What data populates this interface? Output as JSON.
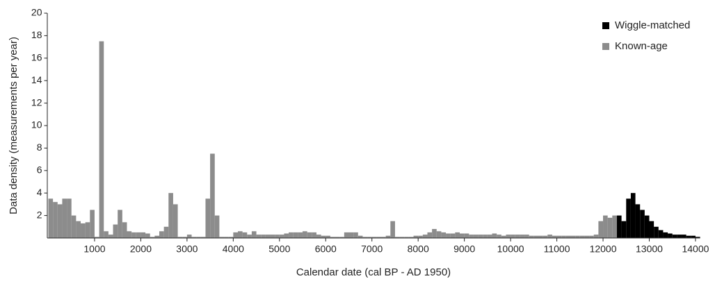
{
  "chart_data": {
    "type": "histogram",
    "xlabel": "Calendar date (cal BP - AD 1950)",
    "ylabel": "Data density (measurements per year)",
    "xlim": [
      0,
      14100
    ],
    "ylim": [
      0,
      20
    ],
    "xticks": [
      1000,
      2000,
      3000,
      4000,
      5000,
      6000,
      7000,
      8000,
      9000,
      10000,
      11000,
      12000,
      13000,
      14000
    ],
    "yticks": [
      2,
      4,
      6,
      8,
      10,
      12,
      14,
      16,
      18,
      20
    ],
    "grid": false,
    "legend": "upper right",
    "bins": [
      0,
      100,
      200,
      300,
      400,
      500,
      600,
      700,
      800,
      900,
      1000,
      1100,
      1200,
      1300,
      1400,
      1500,
      1600,
      1700,
      1800,
      1900,
      2000,
      2100,
      2200,
      2300,
      2400,
      2500,
      2600,
      2700,
      2800,
      2900,
      3000,
      3100,
      3200,
      3300,
      3400,
      3500,
      3600,
      3700,
      3800,
      3900,
      4000,
      4100,
      4200,
      4300,
      4400,
      4500,
      4600,
      4700,
      4800,
      4900,
      5000,
      5100,
      5200,
      5300,
      5400,
      5500,
      5600,
      5700,
      5800,
      5900,
      6000,
      6100,
      6200,
      6300,
      6400,
      6500,
      6600,
      6700,
      6800,
      6900,
      7000,
      7100,
      7200,
      7300,
      7400,
      7500,
      7600,
      7700,
      7800,
      7900,
      8000,
      8100,
      8200,
      8300,
      8400,
      8500,
      8600,
      8700,
      8800,
      8900,
      9000,
      9100,
      9200,
      9300,
      9400,
      9500,
      9600,
      9700,
      9800,
      9900,
      10000,
      10100,
      10200,
      10300,
      10400,
      10500,
      10600,
      10700,
      10800,
      10900,
      11000,
      11100,
      11200,
      11300,
      11400,
      11500,
      11600,
      11700,
      11800,
      11900,
      12000,
      12100,
      12200,
      12300,
      12400,
      12500,
      12600,
      12700,
      12800,
      12900,
      13000,
      13100,
      13200,
      13300,
      13400,
      13500,
      13600,
      13700,
      13800,
      13900,
      14000,
      14100
    ],
    "series": [
      {
        "name": "Wiggle-matched",
        "color": "#000000",
        "values": [
          0,
          0,
          0,
          0,
          0,
          0,
          0,
          0,
          0,
          0,
          0,
          0,
          0,
          0,
          0,
          0,
          0,
          0,
          0,
          0,
          0,
          0,
          0,
          0,
          0,
          0,
          0,
          0,
          0,
          0,
          0,
          0,
          0,
          0,
          0,
          0,
          0,
          0,
          0,
          0,
          0,
          0,
          0,
          0,
          0,
          0,
          0,
          0,
          0,
          0,
          0,
          0,
          0,
          0,
          0,
          0,
          0,
          0,
          0,
          0,
          0,
          0,
          0,
          0,
          0,
          0,
          0,
          0,
          0,
          0,
          0,
          0,
          0,
          0,
          0,
          0,
          0,
          0,
          0,
          0,
          0,
          0,
          0,
          0,
          0,
          0,
          0,
          0,
          0,
          0,
          0,
          0,
          0,
          0,
          0,
          0,
          0,
          0,
          0,
          0,
          0,
          0,
          0,
          0,
          0,
          0,
          0,
          0,
          0,
          0,
          0,
          0,
          0,
          0,
          0,
          0,
          0,
          0,
          0,
          0,
          0,
          0,
          0,
          2.0,
          1.5,
          3.5,
          4.0,
          3.0,
          2.5,
          2.0,
          1.5,
          1.0,
          0.7,
          0.5,
          0.4,
          0.3,
          0.3,
          0.3,
          0.2,
          0.2,
          0.1
        ]
      },
      {
        "name": "Known-age",
        "color": "#8c8c8c",
        "values": [
          3.5,
          3.2,
          3.0,
          3.5,
          3.5,
          2.0,
          1.5,
          1.3,
          1.4,
          2.5,
          0.1,
          17.5,
          0.6,
          0.3,
          1.2,
          2.5,
          1.4,
          0.6,
          0.5,
          0.5,
          0.5,
          0.4,
          0.1,
          0.2,
          0.6,
          1.0,
          4.0,
          3.0,
          0.1,
          0.1,
          0.3,
          0.1,
          0.1,
          0.1,
          3.5,
          7.5,
          2.0,
          0.1,
          0.1,
          0.1,
          0.5,
          0.6,
          0.5,
          0.3,
          0.6,
          0.3,
          0.3,
          0.3,
          0.3,
          0.3,
          0.3,
          0.4,
          0.5,
          0.5,
          0.5,
          0.6,
          0.5,
          0.5,
          0.3,
          0.2,
          0.2,
          0.1,
          0.1,
          0.1,
          0.5,
          0.5,
          0.5,
          0.2,
          0.1,
          0.1,
          0.1,
          0.1,
          0.1,
          0.2,
          1.5,
          0.1,
          0.1,
          0.1,
          0.1,
          0.2,
          0.2,
          0.3,
          0.5,
          0.8,
          0.6,
          0.5,
          0.4,
          0.4,
          0.5,
          0.4,
          0.4,
          0.3,
          0.3,
          0.3,
          0.3,
          0.3,
          0.4,
          0.3,
          0.2,
          0.3,
          0.3,
          0.3,
          0.3,
          0.3,
          0.2,
          0.2,
          0.2,
          0.2,
          0.3,
          0.2,
          0.2,
          0.2,
          0.2,
          0.2,
          0.2,
          0.2,
          0.2,
          0.2,
          0.3,
          1.5,
          2.0,
          1.8,
          2.0,
          0.5,
          0,
          0,
          0,
          0,
          0,
          0,
          0,
          0,
          0,
          0,
          0,
          0,
          0,
          0,
          0,
          0,
          0
        ]
      }
    ]
  }
}
